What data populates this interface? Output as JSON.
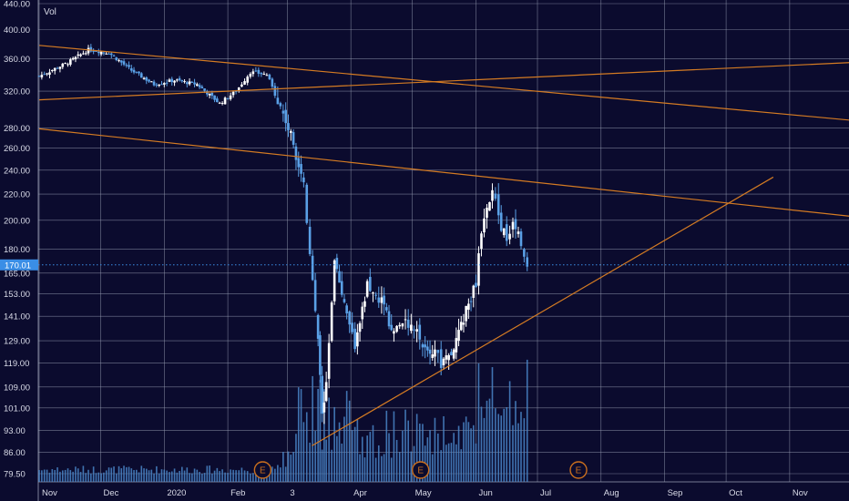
{
  "chart_data": {
    "type": "candlestick",
    "volume_label": "Vol",
    "y_scale": "log",
    "ylim": [
      76,
      440
    ],
    "x_labels": [
      "Nov",
      "Dec",
      "2020",
      "Feb",
      "3",
      "Apr",
      "May",
      "Jun",
      "Jul",
      "Aug",
      "Sep",
      "Oct",
      "Nov"
    ],
    "y_ticks": [
      "440.00",
      "400.00",
      "360.00",
      "320.00",
      "280.00",
      "260.00",
      "240.00",
      "220.00",
      "200.00",
      "180.00",
      "165.00",
      "153.00",
      "141.00",
      "129.00",
      "119.00",
      "109.00",
      "101.00",
      "93.00",
      "86.00",
      "79.50"
    ],
    "last_price": "170.01",
    "earnings_marker": "E",
    "earnings_dates": [
      "2020-02-18",
      "2020-05-05",
      "2020-07-21"
    ],
    "colors": {
      "background": "#0b0b2e",
      "grid": "#9aa0b4",
      "candle_up": "#ffffff",
      "candle_down": "#5aa0e6",
      "volume": "#4a86c8",
      "trendline": "#d47b23",
      "last_price_tag": "#3a8ee6",
      "earnings_marker": "#c86e1e"
    },
    "series": [
      {
        "date": "2019-11-01",
        "price": 338
      },
      {
        "date": "2019-11-15",
        "price": 355
      },
      {
        "date": "2019-11-25",
        "price": 372
      },
      {
        "date": "2019-12-05",
        "price": 368
      },
      {
        "date": "2019-12-16",
        "price": 345
      },
      {
        "date": "2019-12-27",
        "price": 328
      },
      {
        "date": "2020-01-06",
        "price": 333
      },
      {
        "date": "2020-01-17",
        "price": 328
      },
      {
        "date": "2020-01-28",
        "price": 306
      },
      {
        "date": "2020-02-05",
        "price": 320
      },
      {
        "date": "2020-02-12",
        "price": 343
      },
      {
        "date": "2020-02-20",
        "price": 340
      },
      {
        "date": "2020-02-28",
        "price": 295
      },
      {
        "date": "2020-03-04",
        "price": 265
      },
      {
        "date": "2020-03-09",
        "price": 225
      },
      {
        "date": "2020-03-12",
        "price": 178
      },
      {
        "date": "2020-03-16",
        "price": 130
      },
      {
        "date": "2020-03-18",
        "price": 98
      },
      {
        "date": "2020-03-20",
        "price": 112
      },
      {
        "date": "2020-03-24",
        "price": 175
      },
      {
        "date": "2020-03-30",
        "price": 140
      },
      {
        "date": "2020-04-03",
        "price": 126
      },
      {
        "date": "2020-04-09",
        "price": 158
      },
      {
        "date": "2020-04-16",
        "price": 148
      },
      {
        "date": "2020-04-22",
        "price": 133
      },
      {
        "date": "2020-04-29",
        "price": 138
      },
      {
        "date": "2020-05-06",
        "price": 128
      },
      {
        "date": "2020-05-12",
        "price": 124
      },
      {
        "date": "2020-05-15",
        "price": 118
      },
      {
        "date": "2020-05-20",
        "price": 124
      },
      {
        "date": "2020-05-26",
        "price": 140
      },
      {
        "date": "2020-06-01",
        "price": 160
      },
      {
        "date": "2020-06-05",
        "price": 205
      },
      {
        "date": "2020-06-09",
        "price": 225
      },
      {
        "date": "2020-06-12",
        "price": 200
      },
      {
        "date": "2020-06-16",
        "price": 188
      },
      {
        "date": "2020-06-19",
        "price": 200
      },
      {
        "date": "2020-06-23",
        "price": 183
      },
      {
        "date": "2020-06-26",
        "price": 170.01
      }
    ]
  }
}
